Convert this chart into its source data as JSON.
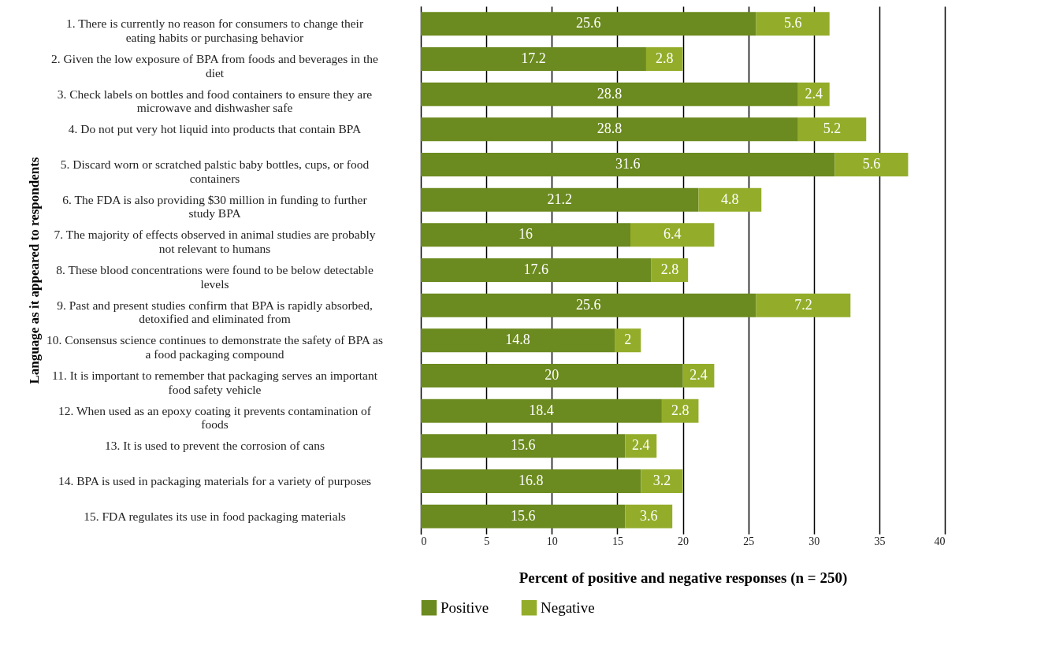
{
  "chart_data": {
    "type": "bar",
    "orientation": "horizontal",
    "stacked": true,
    "data_labels": true,
    "grid": "x",
    "legend": "bottom",
    "xlabel": "Percent of positive and negative responses (n = 250)",
    "ylabel": "Language as it appeared to respondents",
    "categories": [
      "1.  There is currently no reason for consumers to change their eating habits or purchasing behavior",
      "2.  Given the low exposure of BPA from foods and beverages in the diet",
      "3.  Check labels on bottles and food containers to ensure they are microwave and dishwasher safe",
      "4.  Do not put very hot liquid into products that contain BPA",
      "5.  Discard worn or scratched palstic baby bottles, cups, or food containers",
      "6.  The FDA is also providing $30 million in funding to further study BPA",
      "7.  The majority of effects observed in animal studies are probably not relevant to humans",
      "8.  These blood concentrations were found to be below detectable levels",
      "9.  Past and present studies confirm that BPA is rapidly absorbed, detoxified and eliminated from",
      "10.  Consensus science continues to demonstrate the safety of BPA as a food packaging compound",
      "11.  It is important to remember that packaging serves an important food safety vehicle",
      "12.  When used as an epoxy coating it prevents contamination of foods",
      "13.  It is used to prevent the corrosion of cans",
      "14.  BPA is used in packaging materials for a variety of purposes",
      "15.  FDA regulates its use in food packaging materials"
    ],
    "series": [
      {
        "name": "Positive",
        "color": "#6b8a1f",
        "values": [
          25.6,
          17.2,
          28.8,
          28.8,
          31.6,
          21.2,
          16,
          17.6,
          25.6,
          14.8,
          20,
          18.4,
          15.6,
          16.8,
          15.6
        ]
      },
      {
        "name": "Negative",
        "color": "#93ad2a",
        "values": [
          5.6,
          2.8,
          2.4,
          5.2,
          5.6,
          4.8,
          6.4,
          2.8,
          7.2,
          2,
          2.4,
          2.8,
          2.4,
          3.2,
          3.6
        ]
      }
    ],
    "xlim": [
      0,
      40
    ],
    "xticks": [
      0,
      5,
      10,
      15,
      20,
      25,
      30,
      35,
      40
    ]
  }
}
